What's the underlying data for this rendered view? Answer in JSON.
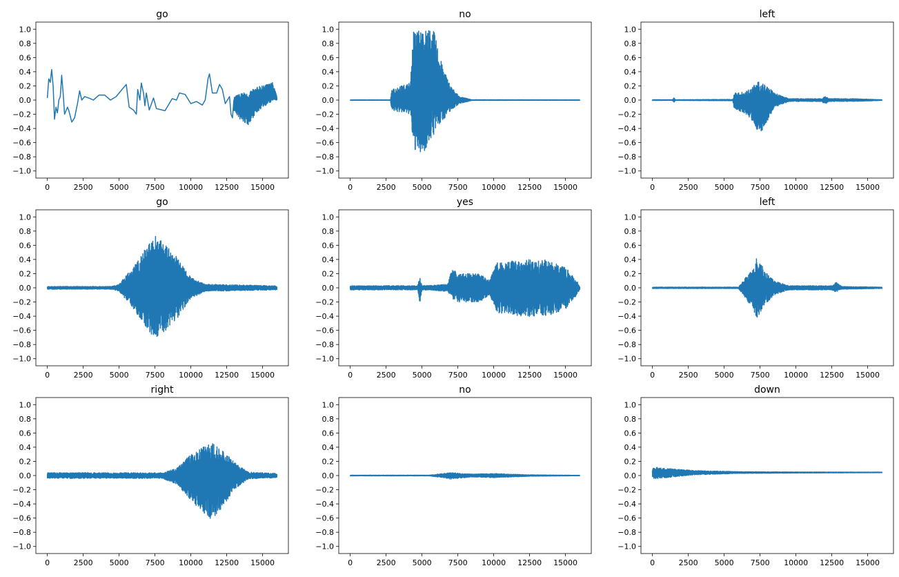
{
  "chart_data": [
    {
      "type": "line",
      "title": "go",
      "xlim": [
        -800,
        16800
      ],
      "ylim": [
        -1.1,
        1.1
      ],
      "points": [
        [
          0,
          0.03
        ],
        [
          100,
          0.3
        ],
        [
          200,
          0.25
        ],
        [
          300,
          0.43
        ],
        [
          400,
          0.2
        ],
        [
          500,
          -0.27
        ],
        [
          600,
          -0.1
        ],
        [
          700,
          -0.18
        ],
        [
          800,
          0.0
        ],
        [
          900,
          0.05
        ],
        [
          1000,
          0.35
        ],
        [
          1100,
          0.1
        ],
        [
          1200,
          -0.2
        ],
        [
          1400,
          -0.1
        ],
        [
          1500,
          -0.15
        ],
        [
          1700,
          -0.31
        ],
        [
          1900,
          -0.25
        ],
        [
          2100,
          -0.05
        ],
        [
          2250,
          0.13
        ],
        [
          2400,
          0.0
        ],
        [
          2600,
          0.05
        ],
        [
          3000,
          0.02
        ],
        [
          3200,
          0.0
        ],
        [
          3600,
          0.07
        ],
        [
          4000,
          0.07
        ],
        [
          4400,
          0.0
        ],
        [
          4800,
          0.05
        ],
        [
          5200,
          0.15
        ],
        [
          5500,
          0.22
        ],
        [
          5700,
          -0.1
        ],
        [
          6000,
          -0.14
        ],
        [
          6200,
          -0.2
        ],
        [
          6300,
          0.15
        ],
        [
          6450,
          0.0
        ],
        [
          6550,
          0.24
        ],
        [
          6700,
          0.1
        ],
        [
          6800,
          -0.08
        ],
        [
          6900,
          0.1
        ],
        [
          7100,
          -0.14
        ],
        [
          7400,
          0.03
        ],
        [
          7600,
          -0.12
        ],
        [
          8000,
          -0.14
        ],
        [
          8200,
          -0.15
        ],
        [
          8700,
          0.02
        ],
        [
          9000,
          0.0
        ],
        [
          9200,
          0.1
        ],
        [
          9600,
          0.08
        ],
        [
          10000,
          -0.05
        ],
        [
          10400,
          -0.02
        ],
        [
          10800,
          -0.07
        ],
        [
          11000,
          0.0
        ],
        [
          11200,
          0.3
        ],
        [
          11300,
          0.37
        ],
        [
          11500,
          0.1
        ],
        [
          11800,
          0.1
        ],
        [
          12000,
          0.22
        ],
        [
          12200,
          0.15
        ],
        [
          12400,
          -0.05
        ],
        [
          12700,
          0.05
        ],
        [
          12800,
          -0.2
        ],
        [
          12900,
          -0.25
        ],
        [
          13000,
          0.0
        ]
      ],
      "envelope": [
        [
          13000,
          0.05,
          -0.15
        ],
        [
          13500,
          0.1,
          -0.3
        ],
        [
          14000,
          0.1,
          -0.35
        ],
        [
          14500,
          0.18,
          -0.2
        ],
        [
          15000,
          0.2,
          -0.1
        ],
        [
          15700,
          0.25,
          -0.02
        ],
        [
          16000,
          0.05,
          0.0
        ]
      ]
    },
    {
      "type": "line",
      "title": "no",
      "xlim": [
        -800,
        16800
      ],
      "ylim": [
        -1.1,
        1.1
      ],
      "envelope": [
        [
          0,
          0.003,
          -0.003
        ],
        [
          2800,
          0.003,
          -0.003
        ],
        [
          2900,
          0.15,
          -0.15
        ],
        [
          4200,
          0.25,
          -0.2
        ],
        [
          4400,
          1.0,
          -0.7
        ],
        [
          5000,
          1.0,
          -0.78
        ],
        [
          5800,
          1.0,
          -0.5
        ],
        [
          6400,
          0.5,
          -0.3
        ],
        [
          7000,
          0.2,
          -0.15
        ],
        [
          7600,
          0.05,
          -0.05
        ],
        [
          8500,
          0.005,
          -0.005
        ],
        [
          16000,
          0.003,
          -0.003
        ]
      ]
    },
    {
      "type": "line",
      "title": "left",
      "xlim": [
        -800,
        16800
      ],
      "ylim": [
        -1.1,
        1.1
      ],
      "envelope": [
        [
          0,
          0.005,
          -0.005
        ],
        [
          1400,
          0.005,
          -0.005
        ],
        [
          1500,
          0.04,
          -0.04
        ],
        [
          1600,
          0.005,
          -0.005
        ],
        [
          5600,
          0.01,
          -0.01
        ],
        [
          5700,
          0.1,
          -0.12
        ],
        [
          6500,
          0.12,
          -0.2
        ],
        [
          7000,
          0.2,
          -0.3
        ],
        [
          7500,
          0.27,
          -0.5
        ],
        [
          8000,
          0.2,
          -0.3
        ],
        [
          8500,
          0.1,
          -0.1
        ],
        [
          9500,
          0.02,
          -0.02
        ],
        [
          11800,
          0.02,
          -0.02
        ],
        [
          12000,
          0.06,
          -0.06
        ],
        [
          12300,
          0.02,
          -0.02
        ],
        [
          14000,
          0.02,
          -0.02
        ],
        [
          16000,
          0.005,
          -0.005
        ]
      ]
    },
    {
      "type": "line",
      "title": "go",
      "xlim": [
        -800,
        16800
      ],
      "ylim": [
        -1.1,
        1.1
      ],
      "envelope": [
        [
          0,
          0.02,
          -0.02
        ],
        [
          4500,
          0.02,
          -0.02
        ],
        [
          5000,
          0.05,
          -0.05
        ],
        [
          6000,
          0.3,
          -0.3
        ],
        [
          7000,
          0.6,
          -0.6
        ],
        [
          7500,
          0.75,
          -0.72
        ],
        [
          8000,
          0.65,
          -0.65
        ],
        [
          9000,
          0.45,
          -0.45
        ],
        [
          9500,
          0.3,
          -0.3
        ],
        [
          10000,
          0.15,
          -0.15
        ],
        [
          11000,
          0.05,
          -0.05
        ],
        [
          16000,
          0.03,
          -0.03
        ]
      ]
    },
    {
      "type": "line",
      "title": "yes",
      "xlim": [
        -800,
        16800
      ],
      "ylim": [
        -1.1,
        1.1
      ],
      "envelope": [
        [
          0,
          0.03,
          -0.03
        ],
        [
          4700,
          0.03,
          -0.03
        ],
        [
          4850,
          0.17,
          -0.23
        ],
        [
          5000,
          0.03,
          -0.03
        ],
        [
          6800,
          0.05,
          -0.05
        ],
        [
          7100,
          0.28,
          -0.15
        ],
        [
          7500,
          0.2,
          -0.2
        ],
        [
          9000,
          0.2,
          -0.2
        ],
        [
          9700,
          0.1,
          -0.1
        ],
        [
          10200,
          0.35,
          -0.35
        ],
        [
          12000,
          0.4,
          -0.4
        ],
        [
          13500,
          0.4,
          -0.42
        ],
        [
          15000,
          0.3,
          -0.3
        ],
        [
          15800,
          0.1,
          -0.1
        ],
        [
          16000,
          0.02,
          -0.02
        ]
      ]
    },
    {
      "type": "line",
      "title": "left",
      "xlim": [
        -800,
        16800
      ],
      "ylim": [
        -1.1,
        1.1
      ],
      "envelope": [
        [
          0,
          0.01,
          -0.01
        ],
        [
          6000,
          0.01,
          -0.01
        ],
        [
          6500,
          0.15,
          -0.15
        ],
        [
          7000,
          0.25,
          -0.3
        ],
        [
          7300,
          0.45,
          -0.43
        ],
        [
          7800,
          0.25,
          -0.25
        ],
        [
          8500,
          0.1,
          -0.1
        ],
        [
          9500,
          0.03,
          -0.03
        ],
        [
          12500,
          0.03,
          -0.03
        ],
        [
          12800,
          0.08,
          -0.06
        ],
        [
          13200,
          0.02,
          -0.02
        ],
        [
          16000,
          0.01,
          -0.01
        ]
      ]
    },
    {
      "type": "line",
      "title": "right",
      "xlim": [
        -800,
        16800
      ],
      "ylim": [
        -1.1,
        1.1
      ],
      "envelope": [
        [
          0,
          0.04,
          -0.04
        ],
        [
          8000,
          0.04,
          -0.04
        ],
        [
          9000,
          0.1,
          -0.12
        ],
        [
          10000,
          0.3,
          -0.35
        ],
        [
          11000,
          0.42,
          -0.55
        ],
        [
          11500,
          0.46,
          -0.63
        ],
        [
          12200,
          0.35,
          -0.45
        ],
        [
          13000,
          0.2,
          -0.2
        ],
        [
          14000,
          0.05,
          -0.05
        ],
        [
          16000,
          0.03,
          -0.03
        ]
      ]
    },
    {
      "type": "line",
      "title": "no",
      "xlim": [
        -800,
        16800
      ],
      "ylim": [
        -1.1,
        1.1
      ],
      "envelope": [
        [
          0,
          0.005,
          -0.005
        ],
        [
          5500,
          0.005,
          -0.005
        ],
        [
          6500,
          0.03,
          -0.03
        ],
        [
          7000,
          0.04,
          -0.05
        ],
        [
          8500,
          0.02,
          -0.02
        ],
        [
          10000,
          0.03,
          -0.03
        ],
        [
          12500,
          0.01,
          -0.01
        ],
        [
          16000,
          0.003,
          -0.003
        ]
      ]
    },
    {
      "type": "line",
      "title": "down",
      "xlim": [
        -800,
        16800
      ],
      "ylim": [
        -1.1,
        1.1
      ],
      "envelope": [
        [
          0,
          0.12,
          -0.05
        ],
        [
          1000,
          0.1,
          -0.03
        ],
        [
          3000,
          0.07,
          0.01
        ],
        [
          6000,
          0.055,
          0.03
        ],
        [
          10000,
          0.05,
          0.035
        ],
        [
          16000,
          0.048,
          0.04
        ]
      ]
    }
  ],
  "axes": {
    "xticks": [
      0,
      2500,
      5000,
      7500,
      10000,
      12500,
      15000
    ],
    "xtick_labels": [
      "0",
      "2500",
      "5000",
      "7500",
      "10000",
      "12500",
      "15000"
    ],
    "yticks": [
      -1.0,
      -0.8,
      -0.6,
      -0.4,
      -0.2,
      0.0,
      0.2,
      0.4,
      0.6,
      0.8,
      1.0
    ],
    "ytick_labels": [
      "−1.0",
      "−0.8",
      "−0.6",
      "−0.4",
      "−0.2",
      "0.0",
      "0.2",
      "0.4",
      "0.6",
      "0.8",
      "1.0"
    ]
  },
  "colors": {
    "line": "#1f77b4"
  }
}
